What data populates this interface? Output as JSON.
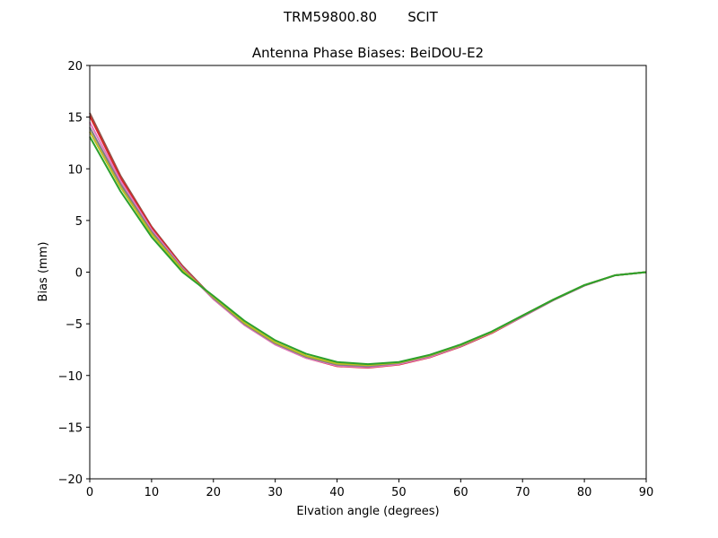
{
  "header": {
    "suptitle_antenna": "TRM59800.80",
    "suptitle_radome": "SCIT"
  },
  "chart_data": {
    "type": "line",
    "title": "Antenna Phase Biases: BeiDOU-E2",
    "xlabel": "Elvation angle (degrees)",
    "ylabel": "Bias (mm)",
    "xlim": [
      0,
      90
    ],
    "ylim": [
      -20,
      20
    ],
    "xticks": [
      0,
      10,
      20,
      30,
      40,
      50,
      60,
      70,
      80,
      90
    ],
    "yticks": [
      -20,
      -15,
      -10,
      -5,
      0,
      5,
      10,
      15,
      20
    ],
    "xtick_labels": [
      "0",
      "10",
      "20",
      "30",
      "40",
      "50",
      "60",
      "70",
      "80",
      "90"
    ],
    "ytick_labels": [
      "−20",
      "−15",
      "−10",
      "−5",
      "0",
      "5",
      "10",
      "15",
      "20"
    ],
    "grid": false,
    "legend": "none",
    "x": [
      0,
      5,
      10,
      15,
      20,
      25,
      30,
      35,
      40,
      45,
      50,
      55,
      60,
      65,
      70,
      75,
      80,
      85,
      90
    ],
    "series": [
      {
        "color": "#8c564b",
        "values": [
          15.4,
          9.3,
          4.4,
          0.6,
          -2.5,
          -5.0,
          -6.9,
          -8.2,
          -9.0,
          -9.2,
          -8.9,
          -8.2,
          -7.2,
          -5.9,
          -4.3,
          -2.7,
          -1.3,
          -0.3,
          0.0
        ]
      },
      {
        "color": "#d62728",
        "values": [
          15.1,
          9.1,
          4.3,
          0.5,
          -2.6,
          -5.1,
          -7.0,
          -8.3,
          -9.1,
          -9.25,
          -8.95,
          -8.25,
          -7.2,
          -5.9,
          -4.3,
          -2.7,
          -1.3,
          -0.3,
          0.0
        ]
      },
      {
        "color": "#e377c2",
        "values": [
          14.5,
          8.8,
          4.1,
          0.4,
          -2.6,
          -5.1,
          -7.0,
          -8.3,
          -9.05,
          -9.2,
          -8.9,
          -8.2,
          -7.15,
          -5.85,
          -4.3,
          -2.7,
          -1.3,
          -0.3,
          0.0
        ]
      },
      {
        "color": "#7f7f7f",
        "values": [
          14.0,
          8.5,
          3.9,
          0.3,
          -2.5,
          -5.0,
          -6.9,
          -8.2,
          -8.95,
          -9.1,
          -8.8,
          -8.1,
          -7.1,
          -5.8,
          -4.25,
          -2.7,
          -1.3,
          -0.3,
          0.0
        ]
      },
      {
        "color": "#bcbd22",
        "values": [
          13.6,
          8.2,
          3.7,
          0.2,
          -2.4,
          -4.9,
          -6.8,
          -8.1,
          -8.85,
          -9.0,
          -8.75,
          -8.05,
          -7.05,
          -5.8,
          -4.2,
          -2.65,
          -1.25,
          -0.3,
          0.0
        ]
      },
      {
        "color": "#2ca02c",
        "values": [
          13.1,
          7.8,
          3.4,
          0.0,
          -2.3,
          -4.7,
          -6.6,
          -7.9,
          -8.7,
          -8.9,
          -8.7,
          -8.0,
          -7.0,
          -5.75,
          -4.2,
          -2.65,
          -1.25,
          -0.3,
          0.0
        ]
      }
    ]
  }
}
